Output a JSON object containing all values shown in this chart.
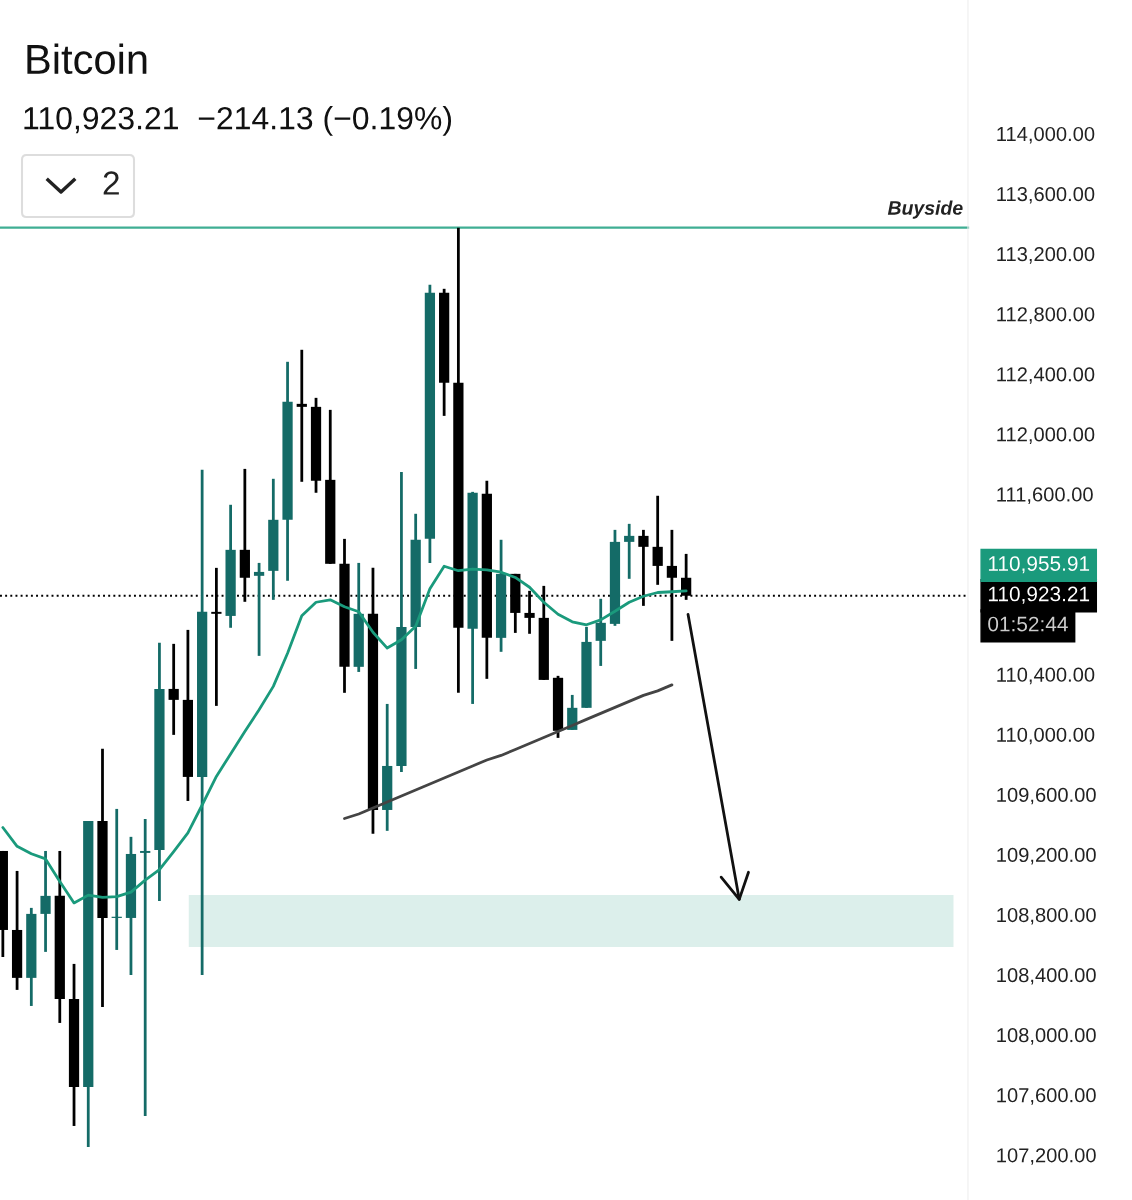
{
  "chart_data": {
    "type": "candlestick",
    "title": "Bitcoin",
    "subtitle": "110,923.21  −214.13 (−0.19%)",
    "categories": [
      null,
      null,
      null,
      null,
      null,
      null,
      null,
      null,
      null,
      null,
      null,
      null,
      null,
      null,
      null,
      null,
      null,
      null,
      null,
      null,
      null,
      null,
      null,
      null,
      null,
      null,
      null,
      null,
      null,
      null,
      null,
      null,
      null,
      null,
      null,
      null,
      null,
      null,
      null,
      null,
      null,
      null,
      null,
      null,
      null,
      null,
      null,
      null,
      null
    ],
    "ohlc": [
      [
        109224,
        109224,
        108518,
        108698
      ],
      [
        108698,
        109091,
        108299,
        108379
      ],
      [
        108379,
        108845,
        108192,
        108805
      ],
      [
        108805,
        109224,
        108552,
        108925
      ],
      [
        108925,
        109224,
        108079,
        108239
      ],
      [
        108239,
        108472,
        107393,
        107653
      ],
      [
        107653,
        109424,
        107253,
        109424
      ],
      [
        109424,
        109904,
        108185,
        108778
      ],
      [
        108778,
        109504,
        108565,
        108785
      ],
      [
        108778,
        109318,
        108398,
        109204
      ],
      [
        109211,
        109437,
        107459,
        109224
      ],
      [
        109231,
        110610,
        108891,
        110303
      ],
      [
        110303,
        110603,
        109997,
        110230
      ],
      [
        110230,
        110696,
        109557,
        109717
      ],
      [
        109717,
        111762,
        108398,
        110816
      ],
      [
        110816,
        111109,
        110190,
        110803
      ],
      [
        110789,
        111529,
        110710,
        111229
      ],
      [
        111229,
        111768,
        110883,
        111043
      ],
      [
        111056,
        111142,
        110523,
        111082
      ],
      [
        111089,
        111702,
        110896,
        111429
      ],
      [
        111429,
        112481,
        111023,
        112215
      ],
      [
        112201,
        112561,
        111682,
        112181
      ],
      [
        112181,
        112241,
        111609,
        111689
      ],
      [
        111695,
        112161,
        111136,
        111136
      ],
      [
        111136,
        111302,
        110277,
        110450
      ],
      [
        110450,
        111142,
        110416,
        110803
      ],
      [
        110803,
        111109,
        109338,
        109497
      ],
      [
        109497,
        110203,
        109358,
        109790
      ],
      [
        109790,
        111748,
        109750,
        110716
      ],
      [
        110716,
        111469,
        110436,
        111296
      ],
      [
        111302,
        112994,
        111142,
        112941
      ],
      [
        112941,
        112967,
        112121,
        112341
      ],
      [
        112341,
        113374,
        110277,
        110710
      ],
      [
        110703,
        111615,
        110203,
        111609
      ],
      [
        111602,
        111689,
        110370,
        110643
      ],
      [
        110643,
        111296,
        110550,
        111069
      ],
      [
        111069,
        111069,
        110676,
        110809
      ],
      [
        110809,
        110956,
        110670,
        110776
      ],
      [
        110776,
        110989,
        110363,
        110363
      ],
      [
        110377,
        110390,
        109977,
        110024
      ],
      [
        110030,
        110263,
        110030,
        110177
      ],
      [
        110177,
        110716,
        110177,
        110616
      ],
      [
        110623,
        110903,
        110456,
        110743
      ],
      [
        110736,
        111362,
        110723,
        111282
      ],
      [
        111282,
        111402,
        111036,
        111322
      ],
      [
        111322,
        111362,
        110856,
        111249
      ],
      [
        111249,
        111589,
        110996,
        111122
      ],
      [
        111122,
        111362,
        110623,
        111043
      ],
      [
        111043,
        111202,
        110896,
        110923.21
      ]
    ],
    "colors": [
      "#000000",
      "#000000",
      "#146b67",
      "#146b67",
      "#000000",
      "#000000",
      "#146b67",
      "#000000",
      "#146b67",
      "#146b67",
      "#146b67",
      "#146b67",
      "#000000",
      "#000000",
      "#146b67",
      "#000000",
      "#146b67",
      "#000000",
      "#146b67",
      "#146b67",
      "#146b67",
      "#000000",
      "#000000",
      "#000000",
      "#000000",
      "#146b67",
      "#000000",
      "#146b67",
      "#146b67",
      "#146b67",
      "#146b67",
      "#000000",
      "#000000",
      "#146b67",
      "#000000",
      "#146b67",
      "#000000",
      "#000000",
      "#000000",
      "#000000",
      "#146b67",
      "#146b67",
      "#146b67",
      "#146b67",
      "#146b67",
      "#000000",
      "#000000",
      "#000000",
      "#000000"
    ],
    "series": [
      {
        "type": "line",
        "color": "#1a9a7c",
        "values": [
          109380,
          109255,
          109205,
          109171,
          109020,
          108878,
          108930,
          108915,
          108920,
          108950,
          109030,
          109100,
          109220,
          109345,
          109530,
          109720,
          109870,
          110020,
          110164,
          110320,
          110540,
          110790,
          110880,
          110896,
          110850,
          110817,
          110680,
          110575,
          110630,
          110720,
          110970,
          111120,
          111090,
          111100,
          111095,
          111080,
          111045,
          110980,
          110880,
          110800,
          110750,
          110730,
          110763,
          110820,
          110880,
          110920,
          110945,
          110950,
          110956
        ]
      },
      {
        "type": "line",
        "color": "#444444",
        "values": [
          null,
          null,
          null,
          null,
          null,
          null,
          null,
          null,
          null,
          null,
          null,
          null,
          null,
          null,
          null,
          null,
          null,
          null,
          null,
          null,
          null,
          null,
          null,
          null,
          109440,
          109470,
          109510,
          109550,
          109590,
          109630,
          109670,
          109710,
          109750,
          109790,
          109830,
          109860,
          109900,
          109940,
          109980,
          110020,
          110060,
          110100,
          110140,
          110180,
          110220,
          110260,
          110290,
          110330,
          null
        ]
      }
    ],
    "ylim": [
      106900,
      114890
    ],
    "yticks": [
      {
        "value": 107200,
        "label": "107,200.00"
      },
      {
        "value": 107600,
        "label": "107,600.00"
      },
      {
        "value": 108000,
        "label": "108,000.00"
      },
      {
        "value": 108400,
        "label": "108,400.00"
      },
      {
        "value": 108800,
        "label": "108,800.00"
      },
      {
        "value": 109200,
        "label": "109,200.00"
      },
      {
        "value": 109600,
        "label": "109,600.00"
      },
      {
        "value": 110000,
        "label": "110,000.00"
      },
      {
        "value": 110400,
        "label": "110,400.00"
      },
      {
        "value": 111600,
        "label": "111,600.00"
      },
      {
        "value": 112000,
        "label": "112,000.00"
      },
      {
        "value": 112400,
        "label": "112,400.00"
      },
      {
        "value": 112800,
        "label": "112,800.00"
      },
      {
        "value": 113200,
        "label": "113,200.00"
      },
      {
        "value": 113600,
        "label": "113,600.00"
      },
      {
        "value": 114000,
        "label": "114,000.00"
      }
    ],
    "tick_labels": "y",
    "ref_lines": [
      {
        "axis": "y",
        "value": 113374,
        "label": "Buyside",
        "color": "#3fae93",
        "line_style": "solid"
      },
      {
        "axis": "y",
        "value": 110923.21,
        "label": "110,923.21",
        "color": "#000000",
        "line_style": "dotted"
      }
    ],
    "bands": [
      {
        "axis": "y",
        "from": 108585,
        "to": 108931,
        "color": "#dcefeb"
      }
    ],
    "annotations": [
      "01:52:44",
      "2",
      "110,955.91"
    ],
    "grid": false,
    "legend": false
  }
}
